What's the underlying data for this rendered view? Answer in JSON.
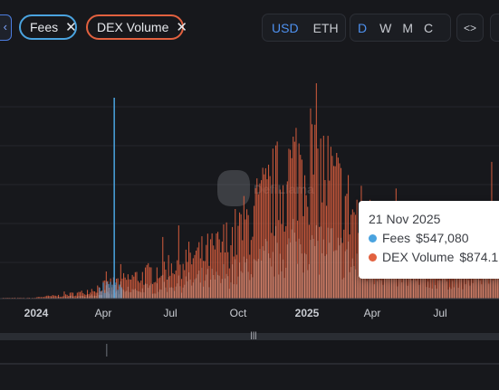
{
  "toolbar": {
    "edge_button_icon": "chevron-left-icon",
    "fees_pill": {
      "label": "Fees",
      "close": "✕",
      "border_color": "#4aa3df"
    },
    "dex_pill": {
      "label": "DEX Volume",
      "close": "✕",
      "border_color": "#e2613f"
    },
    "currency": [
      {
        "label": "USD",
        "active": true
      },
      {
        "label": "ETH",
        "active": false
      }
    ],
    "period": [
      {
        "label": "D",
        "active": true
      },
      {
        "label": "W",
        "active": false
      },
      {
        "label": "M",
        "active": false
      },
      {
        "label": "C",
        "active": false
      }
    ],
    "embed_label": "<>"
  },
  "watermark": "DefiLlama",
  "tooltip": {
    "date": "21 Nov 2025",
    "rows": [
      {
        "name": "Fees",
        "value": "$547,080",
        "color": "#4aa3df"
      },
      {
        "name": "DEX Volume",
        "value": "$874.1",
        "color": "#e2613f"
      }
    ]
  },
  "chart_data": {
    "type": "bar",
    "x_tick_labels": [
      "2024",
      "Apr",
      "Jul",
      "Oct",
      "2025",
      "Apr",
      "Jul"
    ],
    "bold_ticks": [
      "2024",
      "2025"
    ],
    "grid": true,
    "series": [
      {
        "name": "Fees",
        "color": "#4aa3df",
        "spikes": [
          {
            "month": "2024-04",
            "relative_height": 1.0
          }
        ]
      },
      {
        "name": "DEX Volume",
        "color": "#e2613f",
        "monthly_relative_peak": {
          "2024-01": 0.01,
          "2024-02": 0.02,
          "2024-03": 0.04,
          "2024-04": 0.09,
          "2024-05": 0.13,
          "2024-06": 0.17,
          "2024-07": 0.24,
          "2024-08": 0.28,
          "2024-09": 0.33,
          "2024-10": 0.45,
          "2024-11": 0.63,
          "2024-12": 0.8,
          "2025-01": 1.0,
          "2025-02": 0.82,
          "2025-03": 0.6,
          "2025-04": 0.48,
          "2025-05": 0.38,
          "2025-06": 0.33,
          "2025-07": 0.31,
          "2025-08": 0.3,
          "2025-09": 0.42,
          "2025-10": 0.62,
          "2025-11": 0.56
        }
      }
    ]
  }
}
